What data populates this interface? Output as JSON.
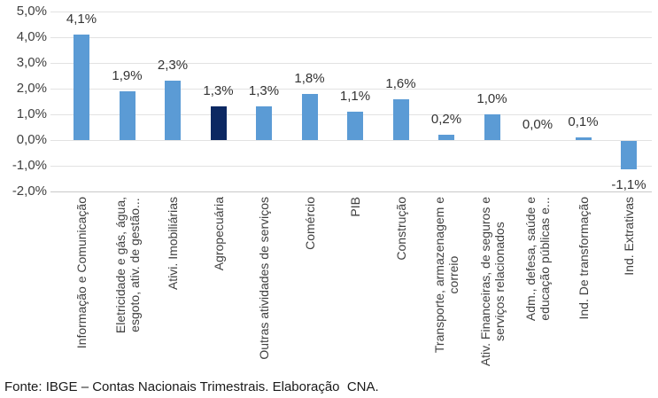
{
  "chart_data": {
    "type": "bar",
    "title": "",
    "xlabel": "",
    "ylabel": "",
    "ylim": [
      -2.0,
      5.0
    ],
    "ytick_step": 1.0,
    "ytick_labels": [
      "5,0%",
      "4,0%",
      "3,0%",
      "2,0%",
      "1,0%",
      "0,0%",
      "-1,0%",
      "-2,0%"
    ],
    "grid": true,
    "legend_position": "none",
    "categories": [
      "Informação e Comunicação",
      "Eletricidade e gás, água, esgoto, ativ. de gestão...",
      "Ativi. Imobiliárias",
      "Agropecuária",
      "Outras atividades de serviços",
      "Comércio",
      "PIB",
      "Construção",
      "Transporte, armazenagem e correio",
      "Ativ. Financeiras, de seguros e serviços relacionados",
      "Adm., defesa, saúde e educação públicas e...",
      "Ind. De transformação",
      "Ind. Extrativas"
    ],
    "category_lines": [
      [
        "Informação e Comunicação"
      ],
      [
        "Eletricidade e gás, água,",
        "esgoto, ativ. de gestão..."
      ],
      [
        "Ativi. Imobiliárias"
      ],
      [
        "Agropecuária"
      ],
      [
        "Outras atividades de serviços"
      ],
      [
        "Comércio"
      ],
      [
        "PIB"
      ],
      [
        "Construção"
      ],
      [
        "Transporte, armazenagem e",
        "correio"
      ],
      [
        "Ativ. Financeiras, de seguros e",
        "serviços relacionados"
      ],
      [
        "Adm., defesa, saúde e",
        "educação públicas e..."
      ],
      [
        "Ind. De transformação"
      ],
      [
        "Ind. Extrativas"
      ]
    ],
    "values": [
      4.1,
      1.9,
      2.3,
      1.3,
      1.3,
      1.8,
      1.1,
      1.6,
      0.2,
      1.0,
      0.0,
      0.1,
      -1.1
    ],
    "value_labels": [
      "4,1%",
      "1,9%",
      "2,3%",
      "1,3%",
      "1,3%",
      "1,8%",
      "1,1%",
      "1,6%",
      "0,2%",
      "1,0%",
      "0,0%",
      "0,1%",
      "-1,1%"
    ],
    "highlight_index": 3,
    "highlight_category": "Agropecuária",
    "bar_color": "#5B9BD5",
    "highlight_color": "#0C2862",
    "gridline_color": "#e2e2e2",
    "axisline_color": "#c9c9c9",
    "label_color": "#404040"
  },
  "footer": {
    "source_note": "Fonte: IBGE – Contas Nacionais Trimestrais. Elaboração  CNA."
  }
}
